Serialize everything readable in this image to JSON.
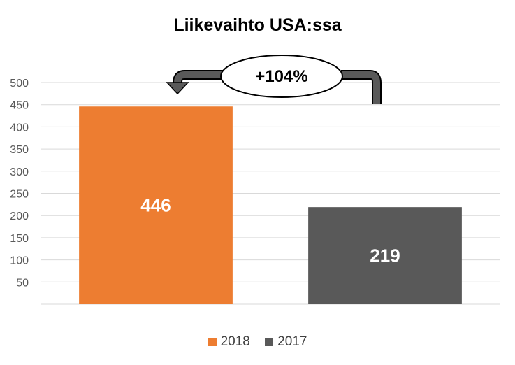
{
  "chart_data": {
    "type": "bar",
    "title": "Liikevaihto USA:ssa",
    "categories": [
      "2018",
      "2017"
    ],
    "values": [
      446,
      219
    ],
    "data_labels": [
      "446",
      "219"
    ],
    "ylim": [
      0,
      500
    ],
    "yticks": [
      50,
      100,
      150,
      200,
      250,
      300,
      350,
      400,
      450,
      500
    ],
    "ytick_labels": [
      "50",
      "100",
      "150",
      "200",
      "250",
      "300",
      "350",
      "400",
      "450",
      "500"
    ],
    "colors": [
      "#ED7D31",
      "#595959"
    ],
    "legend": [
      {
        "label": "2018",
        "color": "#ED7D31"
      },
      {
        "label": "2017",
        "color": "#595959"
      }
    ],
    "legend_position": "bottom",
    "grid": true,
    "annotation": "+104%"
  }
}
